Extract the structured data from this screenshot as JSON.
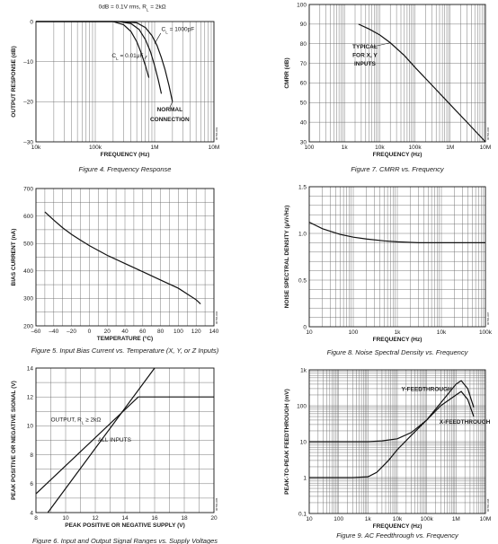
{
  "chart_data": [
    {
      "id": "fig4",
      "type": "line",
      "caption": "Figure 4. Frequency Response",
      "xlabel": "FREQUENCY (Hz)",
      "ylabel": "OUTPUT RESPONSE (dB)",
      "xscale": "log",
      "xlim": [
        10000,
        10000000
      ],
      "ylim": [
        -30,
        0
      ],
      "xticks": [
        {
          "v": 10000,
          "t": "10k"
        },
        {
          "v": 100000,
          "t": "100k"
        },
        {
          "v": 1000000,
          "t": "1M"
        },
        {
          "v": 10000000,
          "t": "10M"
        }
      ],
      "yticks": [
        {
          "v": 0,
          "t": "0"
        },
        {
          "v": -10,
          "t": "–10"
        },
        {
          "v": -20,
          "t": "–20"
        },
        {
          "v": -30,
          "t": "–30"
        }
      ],
      "grid": "log-x",
      "code": "00786-003",
      "series": [
        {
          "name": "",
          "x": [
            10000,
            100000,
            300000,
            500000,
            700000,
            900000,
            1100000,
            1300000,
            1500000,
            1750000,
            2000000
          ],
          "y": [
            0,
            0,
            0,
            -0.3,
            -1.5,
            -3.5,
            -6,
            -9,
            -12,
            -16,
            -20
          ]
        },
        {
          "name": "",
          "x": [
            10000,
            100000,
            250000,
            400000,
            550000,
            700000,
            850000,
            1000000,
            1150000,
            1300000
          ],
          "y": [
            0,
            0,
            0,
            -0.5,
            -2,
            -4.5,
            -7.5,
            -11,
            -14.5,
            -18
          ]
        },
        {
          "name": "",
          "x": [
            10000,
            100000,
            200000,
            300000,
            400000,
            500000,
            600000,
            700000,
            800000
          ],
          "y": [
            0,
            0,
            0,
            -0.8,
            -2.5,
            -5,
            -8,
            -11,
            -14
          ]
        }
      ],
      "annotations": [
        {
          "text": "0dB = 0.1V rms, R",
          "sub": "L",
          "rest": " = 2kΩ",
          "x": 420000,
          "y": 3.3,
          "anchor": "middle",
          "bold": false
        },
        {
          "text": "C",
          "sub": "L",
          "rest": " = 1000pF",
          "x": 1300000,
          "y": -2.4,
          "anchor": "start",
          "bold": false,
          "lead": [
            [
              1270000,
              -2.9
            ],
            [
              1000000,
              -5.5
            ]
          ]
        },
        {
          "text": "C",
          "sub": "L",
          "rest": " = 0.01μF",
          "x": 190000,
          "y": -9.0,
          "anchor": "start",
          "bold": false,
          "lead": [
            [
              680000,
              -9.3
            ],
            [
              740000,
              -8.5
            ]
          ]
        },
        {
          "text": "NORMAL",
          "x": 1800000,
          "y": -22.4,
          "anchor": "middle",
          "bold": true
        },
        {
          "text": "CONNECTION",
          "x": 1800000,
          "y": -24.8,
          "anchor": "middle",
          "bold": true
        }
      ],
      "lead_lines": [
        [
          [
            1800000,
            -21.4
          ],
          [
            2000000,
            -20
          ]
        ]
      ]
    },
    {
      "id": "fig7",
      "type": "line",
      "caption": "Figure 7. CMRR vs. Frequency",
      "xlabel": "FREQUENCY (Hz)",
      "ylabel": "CMRR (dB)",
      "xscale": "log",
      "xlim": [
        100,
        10000000
      ],
      "ylim": [
        30,
        100
      ],
      "xticks": [
        {
          "v": 100,
          "t": "100"
        },
        {
          "v": 1000,
          "t": "1k"
        },
        {
          "v": 10000,
          "t": "10k"
        },
        {
          "v": 100000,
          "t": "100k"
        },
        {
          "v": 1000000,
          "t": "1M"
        },
        {
          "v": 10000000,
          "t": "10M"
        }
      ],
      "yticks": [
        {
          "v": 30,
          "t": "30"
        },
        {
          "v": 40,
          "t": "40"
        },
        {
          "v": 50,
          "t": "50"
        },
        {
          "v": 60,
          "t": "60"
        },
        {
          "v": 70,
          "t": "70"
        },
        {
          "v": 80,
          "t": "80"
        },
        {
          "v": 90,
          "t": "90"
        },
        {
          "v": 100,
          "t": "100"
        }
      ],
      "grid": "log-x",
      "code": "00786-006",
      "series": [
        {
          "name": "",
          "x": [
            2500,
            5000,
            10000,
            20000,
            50000,
            100000,
            300000,
            1000000,
            3000000,
            10000000
          ],
          "y": [
            90,
            87.5,
            84.5,
            80.5,
            74,
            68,
            59,
            49,
            40,
            30
          ]
        }
      ],
      "annotations": [
        {
          "text": "TYPICAL",
          "x": 3800,
          "y": 77.5,
          "anchor": "middle",
          "bold": true
        },
        {
          "text": "FOR X, Y",
          "x": 3800,
          "y": 73.2,
          "anchor": "middle",
          "bold": true
        },
        {
          "text": "INPUTS",
          "x": 3800,
          "y": 68.9,
          "anchor": "middle",
          "bold": true
        }
      ],
      "lead_lines": [
        [
          [
            6500,
            78.5
          ],
          [
            20000,
            80.5
          ]
        ]
      ]
    },
    {
      "id": "fig5",
      "type": "line",
      "caption": "Figure 5. Input Bias Current vs. Temperature (X, Y, or Z Inputs)",
      "xlabel": "TEMPERATURE (°C)",
      "ylabel": "BIAS CURRENT (nA)",
      "xscale": "linear",
      "xlim": [
        -60,
        140
      ],
      "ylim": [
        200,
        700
      ],
      "xticks": [
        {
          "v": -60,
          "t": "–60"
        },
        {
          "v": -40,
          "t": "–40"
        },
        {
          "v": -20,
          "t": "–20"
        },
        {
          "v": 0,
          "t": "0"
        },
        {
          "v": 20,
          "t": "20"
        },
        {
          "v": 40,
          "t": "40"
        },
        {
          "v": 60,
          "t": "60"
        },
        {
          "v": 80,
          "t": "80"
        },
        {
          "v": 100,
          "t": "100"
        },
        {
          "v": 120,
          "t": "120"
        },
        {
          "v": 140,
          "t": "140"
        }
      ],
      "yticks": [
        {
          "v": 200,
          "t": "200"
        },
        {
          "v": 300,
          "t": "300"
        },
        {
          "v": 400,
          "t": "400"
        },
        {
          "v": 500,
          "t": "500"
        },
        {
          "v": 600,
          "t": "600"
        },
        {
          "v": 700,
          "t": "700"
        }
      ],
      "grid": "linear",
      "xgrid_step": 10,
      "ygrid_step": 50,
      "code": "00786-004",
      "series": [
        {
          "name": "",
          "x": [
            -50,
            -40,
            -30,
            -20,
            -10,
            0,
            20,
            40,
            60,
            80,
            100,
            120,
            125
          ],
          "y": [
            615,
            585,
            557,
            533,
            512,
            492,
            457,
            427,
            397,
            367,
            337,
            295,
            280
          ]
        }
      ],
      "annotations": [],
      "lead_lines": []
    },
    {
      "id": "fig8",
      "type": "line",
      "caption": "Figure 8. Noise Spectral Density vs. Frequency",
      "xlabel": "FREQUENCY (Hz)",
      "ylabel": "NOISE SPECTRAL DENSITY (μV/√Hz)",
      "xscale": "log",
      "xlim": [
        10,
        100000
      ],
      "ylim": [
        0,
        1.5
      ],
      "xticks": [
        {
          "v": 10,
          "t": "10"
        },
        {
          "v": 100,
          "t": "100"
        },
        {
          "v": 1000,
          "t": "1k"
        },
        {
          "v": 10000,
          "t": "10k"
        },
        {
          "v": 100000,
          "t": "100k"
        }
      ],
      "yticks": [
        {
          "v": 0,
          "t": "0"
        },
        {
          "v": 0.5,
          "t": "0.5"
        },
        {
          "v": 1.0,
          "t": "1.0"
        },
        {
          "v": 1.5,
          "t": "1.5"
        }
      ],
      "grid": "log-x",
      "ygrid_step": 0.1,
      "code": "00786-007",
      "series": [
        {
          "name": "",
          "x": [
            10,
            20,
            50,
            100,
            200,
            500,
            1000,
            3000,
            10000,
            100000
          ],
          "y": [
            1.12,
            1.05,
            0.99,
            0.96,
            0.94,
            0.92,
            0.91,
            0.9,
            0.9,
            0.9
          ]
        }
      ],
      "annotations": [],
      "lead_lines": []
    },
    {
      "id": "fig6",
      "type": "line",
      "caption": "Figure 6. Input and Output Signal Ranges vs. Supply Voltages",
      "xlabel": "PEAK POSITIVE OR NEGATIVE SUPPLY (V)",
      "ylabel": "PEAK POSITIVE OR NEGATIVE SIGNAL (V)",
      "xscale": "linear",
      "xlim": [
        8,
        20
      ],
      "ylim": [
        4,
        14
      ],
      "xticks": [
        {
          "v": 8,
          "t": "8"
        },
        {
          "v": 10,
          "t": "10"
        },
        {
          "v": 12,
          "t": "12"
        },
        {
          "v": 14,
          "t": "14"
        },
        {
          "v": 16,
          "t": "16"
        },
        {
          "v": 18,
          "t": "18"
        },
        {
          "v": 20,
          "t": "20"
        }
      ],
      "yticks": [
        {
          "v": 4,
          "t": "4"
        },
        {
          "v": 6,
          "t": "6"
        },
        {
          "v": 8,
          "t": "8"
        },
        {
          "v": 10,
          "t": "10"
        },
        {
          "v": 12,
          "t": "12"
        },
        {
          "v": 14,
          "t": "14"
        }
      ],
      "grid": "linear",
      "xgrid_step": 1,
      "ygrid_step": 1,
      "code": "00786-005",
      "series": [
        {
          "name": "",
          "x": [
            8,
            14.9,
            20
          ],
          "y": [
            5.3,
            12,
            12
          ]
        },
        {
          "name": "",
          "x": [
            8.8,
            16
          ],
          "y": [
            4,
            14
          ]
        }
      ],
      "annotations": [
        {
          "text": "OUTPUT, R",
          "sub": "L",
          "rest": " ≥ 2kΩ",
          "x": 9.0,
          "y": 10.3,
          "anchor": "start",
          "bold": false
        },
        {
          "text": "ALL INPUTS",
          "x": 13.3,
          "y": 8.9,
          "anchor": "middle",
          "bold": false
        }
      ],
      "lead_lines": []
    },
    {
      "id": "fig9",
      "type": "line",
      "caption": "Figure 9. AC Feedthrough vs. Frequency",
      "xlabel": "FREQUENCY (Hz)",
      "ylabel": "PEAK-TO-PEAK FEEDTHROUGH (mV)",
      "xscale": "log",
      "yscale": "log",
      "xlim": [
        10,
        10000000
      ],
      "ylim": [
        0.1,
        1000
      ],
      "xticks": [
        {
          "v": 10,
          "t": "10"
        },
        {
          "v": 100,
          "t": "100"
        },
        {
          "v": 1000,
          "t": "1k"
        },
        {
          "v": 10000,
          "t": "10k"
        },
        {
          "v": 100000,
          "t": "100k"
        },
        {
          "v": 1000000,
          "t": "1M"
        },
        {
          "v": 10000000,
          "t": "10M"
        }
      ],
      "yticks": [
        {
          "v": 0.1,
          "t": "0.1"
        },
        {
          "v": 1,
          "t": "1"
        },
        {
          "v": 10,
          "t": "10"
        },
        {
          "v": 100,
          "t": "100"
        },
        {
          "v": 1000,
          "t": "1k"
        }
      ],
      "grid": "log-xy",
      "code": "00786-008",
      "series": [
        {
          "name": "Y-FEEDTHROUGH",
          "x": [
            10,
            300,
            1000,
            3000,
            10000,
            30000,
            100000,
            300000,
            1000000,
            1500000,
            2500000,
            4000000
          ],
          "y": [
            10,
            10,
            10,
            10.5,
            12,
            18,
            40,
            120,
            400,
            500,
            300,
            90
          ]
        },
        {
          "name": "X-FEEDTHROUGH",
          "x": [
            10,
            300,
            1000,
            2000,
            5000,
            10000,
            30000,
            100000,
            300000,
            1000000,
            1500000,
            2500000,
            4000000
          ],
          "y": [
            1,
            1,
            1.05,
            1.4,
            3,
            6,
            15,
            40,
            100,
            200,
            250,
            150,
            50
          ]
        }
      ],
      "annotations": [
        {
          "text": "Y-FEEDTHROUGH",
          "x": 100000,
          "y": 260,
          "anchor": "middle",
          "bold": true
        },
        {
          "text": "X-FEEDTHROUGH",
          "x": 270000,
          "y": 32,
          "anchor": "start",
          "bold": true
        }
      ],
      "lead_lines": []
    }
  ]
}
